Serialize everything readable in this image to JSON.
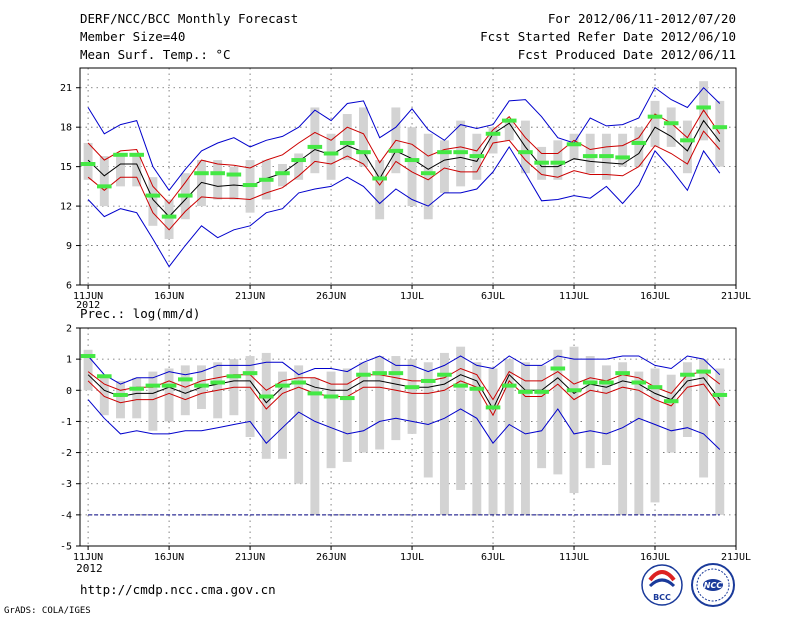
{
  "header": {
    "title": "DERF/NCC/BCC Monthly Forecast",
    "member_size": "Member Size=40",
    "variable": "Mean Surf. Temp.: °C",
    "period": "For 2012/06/11-2012/07/20",
    "started": "Fcst Started Refer Date 2012/06/10",
    "produced": "Fcst Produced Date 2012/06/11"
  },
  "footer": {
    "url": "http://cmdp.ncc.cma.gov.cn",
    "grads": "GrADS: COLA/IGES",
    "logo_bcc": "BCC",
    "logo_ncc": "NCC"
  },
  "colors": {
    "ensemble_bar": "#d3d3d3",
    "observed": "#44e844",
    "envelope": "#0000cc",
    "spread": "#cc0000",
    "mean": "#000000",
    "floor": "#000080"
  },
  "chart_data": [
    {
      "type": "line",
      "title": "Mean Surf. Temp.: °C",
      "x": [
        1,
        2,
        3,
        4,
        5,
        6,
        7,
        8,
        9,
        10,
        11,
        12,
        13,
        14,
        15,
        16,
        17,
        18,
        19,
        20,
        21,
        22,
        23,
        24,
        25,
        26,
        27,
        28,
        29,
        30,
        31,
        32,
        33,
        34,
        35,
        36,
        37,
        38,
        39,
        40
      ],
      "xticks": [
        "11JUN",
        "16JUN",
        "21JUN",
        "26JUN",
        "1JUL",
        "6JUL",
        "11JUL",
        "16JUL",
        "21JUL"
      ],
      "xtick_pos": [
        1,
        6,
        11,
        16,
        21,
        26,
        31,
        36,
        41
      ],
      "year_label": "2012",
      "xlim": [
        0.5,
        41
      ],
      "ylim": [
        6,
        22.5
      ],
      "yticks": [
        6,
        9,
        12,
        15,
        18,
        21
      ],
      "series": [
        {
          "name": "ensemble max",
          "values": [
            19.5,
            17.5,
            18.2,
            18.5,
            15.0,
            13.2,
            14.8,
            16.2,
            16.8,
            17.2,
            16.5,
            17.0,
            17.3,
            18.0,
            19.3,
            18.5,
            19.8,
            20.0,
            17.2,
            18.0,
            19.4,
            17.8,
            17.0,
            18.2,
            17.9,
            18.2,
            20.0,
            20.1,
            18.8,
            17.2,
            16.8,
            18.7,
            18.1,
            18.2,
            18.7,
            21.0,
            20.1,
            19.5,
            21.0,
            19.8
          ]
        },
        {
          "name": "ensemble upper",
          "values": [
            16.8,
            15.5,
            16.2,
            16.3,
            13.5,
            12.2,
            13.8,
            15.5,
            15.2,
            15.1,
            14.9,
            15.5,
            15.9,
            16.8,
            17.6,
            17.0,
            18.0,
            17.5,
            15.3,
            17.0,
            16.7,
            15.8,
            16.3,
            16.5,
            16.2,
            17.8,
            18.8,
            17.2,
            16.0,
            16.0,
            17.0,
            16.3,
            16.5,
            16.6,
            17.2,
            19.0,
            18.3,
            17.2,
            19.3,
            17.5
          ]
        },
        {
          "name": "ensemble mean",
          "values": [
            15.5,
            14.3,
            15.2,
            15.2,
            12.5,
            11.2,
            12.5,
            13.8,
            13.5,
            13.6,
            13.5,
            14.1,
            14.5,
            15.4,
            16.3,
            15.9,
            16.6,
            16.1,
            14.1,
            16.2,
            15.6,
            14.8,
            15.5,
            15.7,
            15.4,
            17.5,
            18.3,
            16.5,
            15.0,
            15.0,
            15.6,
            15.4,
            15.3,
            15.2,
            16.0,
            18.0,
            17.3,
            16.2,
            18.5,
            16.9
          ]
        },
        {
          "name": "ensemble lower",
          "values": [
            14.2,
            13.2,
            14.2,
            14.2,
            11.5,
            10.2,
            11.6,
            12.7,
            12.6,
            12.6,
            12.5,
            13.0,
            13.4,
            14.3,
            15.4,
            15.2,
            15.8,
            15.2,
            13.6,
            15.4,
            14.6,
            14.0,
            14.9,
            14.6,
            14.6,
            16.8,
            17.0,
            15.5,
            14.4,
            14.2,
            14.7,
            14.4,
            14.4,
            14.3,
            15.0,
            16.6,
            16.0,
            15.2,
            17.7,
            16.3
          ]
        },
        {
          "name": "ensemble min",
          "values": [
            12.5,
            11.2,
            11.8,
            11.5,
            9.5,
            7.4,
            9.0,
            10.5,
            9.6,
            10.2,
            10.5,
            11.5,
            11.8,
            13.0,
            13.3,
            13.5,
            14.2,
            13.5,
            12.2,
            13.3,
            12.5,
            12.0,
            13.0,
            13.0,
            13.3,
            14.6,
            16.5,
            14.5,
            12.4,
            12.5,
            12.8,
            12.6,
            13.5,
            12.2,
            13.6,
            16.2,
            14.8,
            13.2,
            16.2,
            14.5
          ]
        },
        {
          "name": "observed",
          "values": [
            15.2,
            13.5,
            15.9,
            15.9,
            12.8,
            11.2,
            12.8,
            14.5,
            14.5,
            14.4,
            13.6,
            14.0,
            14.5,
            15.5,
            16.5,
            16.0,
            16.8,
            16.1,
            14.1,
            16.2,
            15.5,
            14.5,
            16.1,
            16.1,
            15.8,
            17.5,
            18.5,
            16.1,
            15.3,
            15.3,
            16.7,
            15.8,
            15.8,
            15.7,
            16.8,
            18.8,
            18.3,
            17.0,
            19.5,
            18.0
          ]
        }
      ],
      "box_tops": [
        16.8,
        15.8,
        15.8,
        16.0,
        14.2,
        12.5,
        14.5,
        15.5,
        15.5,
        15.0,
        15.5,
        15.5,
        15.2,
        16.0,
        19.5,
        17.5,
        19.0,
        19.5,
        15.5,
        19.5,
        18.0,
        17.5,
        17.0,
        18.5,
        17.5,
        18.0,
        18.5,
        18.5,
        16.5,
        17.0,
        17.5,
        17.5,
        17.5,
        17.5,
        18.0,
        20.0,
        19.5,
        18.5,
        21.5,
        20.0
      ],
      "box_bottoms": [
        14.0,
        12.0,
        13.5,
        13.5,
        10.5,
        9.5,
        11.0,
        12.0,
        12.5,
        12.5,
        11.5,
        12.5,
        13.5,
        14.0,
        14.5,
        14.0,
        15.5,
        15.0,
        11.0,
        14.5,
        12.0,
        11.0,
        13.0,
        13.5,
        14.0,
        16.0,
        17.0,
        14.5,
        14.0,
        14.0,
        15.5,
        14.5,
        14.0,
        15.0,
        15.0,
        16.5,
        16.5,
        14.5,
        17.0,
        15.0
      ]
    },
    {
      "type": "line",
      "title": "Prec.: log(mm/d)",
      "x": [
        1,
        2,
        3,
        4,
        5,
        6,
        7,
        8,
        9,
        10,
        11,
        12,
        13,
        14,
        15,
        16,
        17,
        18,
        19,
        20,
        21,
        22,
        23,
        24,
        25,
        26,
        27,
        28,
        29,
        30,
        31,
        32,
        33,
        34,
        35,
        36,
        37,
        38,
        39,
        40
      ],
      "xticks": [
        "11JUN",
        "16JUN",
        "21JUN",
        "26JUN",
        "1JUL",
        "6JUL",
        "11JUL",
        "16JUL",
        "21JUL"
      ],
      "xtick_pos": [
        1,
        6,
        11,
        16,
        21,
        26,
        31,
        36,
        41
      ],
      "year_label": "2012",
      "xlim": [
        0.5,
        41
      ],
      "ylim": [
        -5,
        2
      ],
      "yticks": [
        -5,
        -4,
        -3,
        -2,
        -1,
        0,
        1,
        2
      ],
      "series": [
        {
          "name": "ensemble max",
          "values": [
            1.1,
            0.5,
            0.2,
            0.4,
            0.4,
            0.6,
            0.5,
            0.6,
            0.8,
            0.8,
            0.8,
            0.9,
            0.9,
            0.5,
            0.7,
            0.7,
            0.6,
            0.9,
            1.1,
            0.8,
            0.8,
            0.6,
            0.8,
            1.1,
            0.8,
            0.7,
            1.1,
            0.8,
            0.8,
            1.1,
            1.0,
            1.0,
            1.0,
            1.1,
            1.1,
            0.8,
            0.7,
            1.1,
            1.0,
            0.5
          ]
        },
        {
          "name": "ensemble upper",
          "values": [
            0.6,
            0.2,
            0.0,
            0.1,
            0.1,
            0.3,
            0.1,
            0.3,
            0.4,
            0.5,
            0.5,
            0.0,
            0.3,
            0.4,
            0.4,
            0.2,
            0.2,
            0.5,
            0.5,
            0.4,
            0.3,
            0.3,
            0.4,
            0.7,
            0.5,
            -0.3,
            0.6,
            0.3,
            0.3,
            0.6,
            0.2,
            0.4,
            0.3,
            0.5,
            0.4,
            0.1,
            -0.1,
            0.5,
            0.6,
            0.2
          ]
        },
        {
          "name": "ensemble mean",
          "values": [
            0.5,
            0.0,
            -0.2,
            -0.1,
            -0.1,
            0.1,
            -0.1,
            0.1,
            0.2,
            0.3,
            0.3,
            -0.4,
            0.1,
            0.3,
            0.1,
            0.0,
            0.0,
            0.3,
            0.3,
            0.2,
            0.1,
            0.1,
            0.2,
            0.5,
            0.3,
            -0.6,
            0.5,
            0.0,
            0.0,
            0.4,
            -0.1,
            0.2,
            0.1,
            0.3,
            0.2,
            -0.1,
            -0.3,
            0.3,
            0.4,
            -0.3
          ]
        },
        {
          "name": "ensemble lower",
          "values": [
            0.3,
            -0.2,
            -0.4,
            -0.3,
            -0.3,
            -0.1,
            -0.3,
            -0.1,
            0.0,
            0.1,
            0.1,
            -0.6,
            -0.1,
            0.1,
            -0.1,
            -0.2,
            -0.2,
            0.1,
            0.1,
            0.0,
            -0.1,
            -0.1,
            0.0,
            0.3,
            0.1,
            -0.8,
            0.3,
            -0.2,
            -0.2,
            0.2,
            -0.3,
            0.0,
            -0.1,
            0.1,
            0.0,
            -0.3,
            -0.5,
            0.1,
            0.2,
            -0.5
          ]
        },
        {
          "name": "ensemble min",
          "values": [
            -0.3,
            -0.9,
            -1.4,
            -1.3,
            -1.4,
            -1.4,
            -1.3,
            -1.3,
            -1.2,
            -1.1,
            -1.0,
            -1.7,
            -1.2,
            -0.7,
            -1.0,
            -1.2,
            -1.4,
            -1.3,
            -1.0,
            -0.9,
            -1.0,
            -1.1,
            -0.9,
            -0.6,
            -0.9,
            -1.7,
            -1.1,
            -1.4,
            -1.3,
            -0.6,
            -1.4,
            -1.3,
            -1.4,
            -1.2,
            -0.9,
            -1.1,
            -1.3,
            -1.2,
            -1.4,
            -1.9
          ]
        },
        {
          "name": "observed",
          "values": [
            1.1,
            0.45,
            -0.15,
            0.05,
            0.15,
            0.15,
            0.35,
            0.15,
            0.25,
            0.45,
            0.55,
            -0.2,
            0.15,
            0.25,
            -0.1,
            -0.2,
            -0.25,
            0.5,
            0.55,
            0.55,
            0.1,
            0.3,
            0.5,
            0.15,
            0.05,
            -0.55,
            0.15,
            -0.05,
            -0.05,
            0.7,
            0.0,
            0.25,
            0.25,
            0.55,
            0.25,
            0.1,
            -0.35,
            0.5,
            0.6,
            -0.15
          ]
        },
        {
          "name": "floor",
          "values": [
            -4,
            -4,
            -4,
            -4,
            -4,
            -4,
            -4,
            -4,
            -4,
            -4,
            -4,
            -4,
            -4,
            -4,
            -4,
            -4,
            -4,
            -4,
            -4,
            -4,
            -4,
            -4,
            -4,
            -4,
            -4,
            -4,
            -4,
            -4,
            -4,
            -4,
            -4,
            -4,
            -4,
            -4,
            -4,
            -4,
            -4,
            -4,
            -4,
            -4
          ]
        }
      ],
      "box_tops": [
        1.3,
        0.5,
        0.3,
        0.4,
        0.6,
        0.7,
        0.8,
        0.8,
        0.9,
        1.0,
        1.1,
        1.2,
        0.6,
        0.8,
        0.4,
        0.6,
        0.7,
        0.9,
        1.1,
        1.1,
        1.0,
        0.9,
        1.2,
        1.4,
        0.9,
        0.7,
        1.0,
        0.9,
        0.8,
        1.3,
        1.4,
        1.1,
        0.8,
        0.9,
        0.6,
        0.7,
        0.5,
        0.9,
        1.0,
        0.7
      ],
      "box_bottoms": [
        0.0,
        -0.8,
        -0.9,
        -0.9,
        -1.3,
        -1.0,
        -0.8,
        -0.6,
        -0.9,
        -0.8,
        -1.5,
        -2.2,
        -2.2,
        -3.0,
        -4.0,
        -2.5,
        -2.3,
        -2.0,
        -1.9,
        -1.6,
        -1.4,
        -2.8,
        -4.0,
        -3.2,
        -4.0,
        -4.0,
        -4.0,
        -4.0,
        -2.5,
        -2.7,
        -3.3,
        -2.5,
        -2.4,
        -4.0,
        -4.0,
        -3.6,
        -2.0,
        -1.5,
        -2.8,
        -4.0
      ]
    }
  ]
}
